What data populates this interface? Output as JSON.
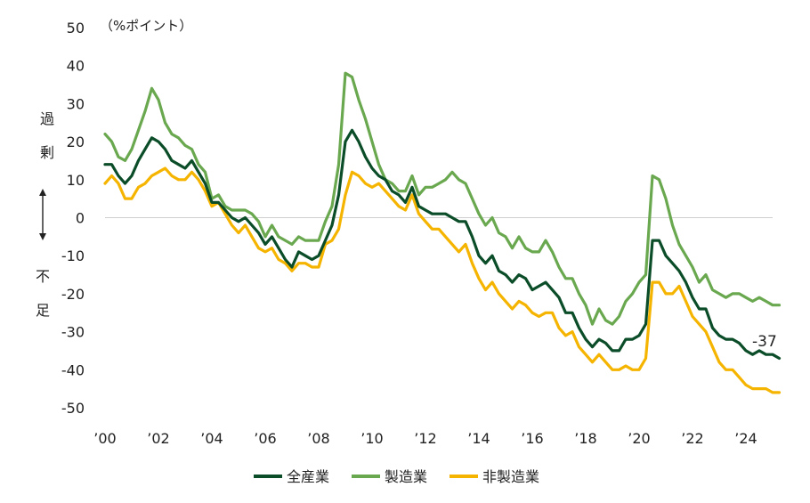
{
  "chart_data": {
    "type": "line",
    "unit_label": "（%ポイント）",
    "ylim": [
      -50,
      50
    ],
    "y_ticks": [
      50,
      40,
      30,
      20,
      10,
      0,
      -10,
      -20,
      -30,
      -40,
      -50
    ],
    "x_range": [
      2000,
      2025
    ],
    "x_tick_positions": [
      2000,
      2002,
      2004,
      2006,
      2008,
      2010,
      2012,
      2014,
      2016,
      2018,
      2020,
      2022,
      2024
    ],
    "x_tick_labels": [
      "’00",
      "’02",
      "’04",
      "’06",
      "’08",
      "’10",
      "’12",
      "’14",
      "’16",
      "’18",
      "’20",
      "’22",
      "’24"
    ],
    "side_top": [
      "過",
      "剰"
    ],
    "side_bottom": [
      "不",
      "足"
    ],
    "end_label": "-37",
    "legend_position": "bottom",
    "series": [
      {
        "name": "全産業",
        "color": "#0b4d28",
        "points": [
          [
            2000.0,
            14
          ],
          [
            2000.25,
            14
          ],
          [
            2000.5,
            11
          ],
          [
            2000.75,
            9
          ],
          [
            2001.0,
            11
          ],
          [
            2001.25,
            15
          ],
          [
            2001.5,
            18
          ],
          [
            2001.75,
            21
          ],
          [
            2002.0,
            20
          ],
          [
            2002.25,
            18
          ],
          [
            2002.5,
            15
          ],
          [
            2002.75,
            14
          ],
          [
            2003.0,
            13
          ],
          [
            2003.25,
            15
          ],
          [
            2003.5,
            12
          ],
          [
            2003.75,
            9
          ],
          [
            2004.0,
            4
          ],
          [
            2004.25,
            4
          ],
          [
            2004.5,
            2
          ],
          [
            2004.75,
            0
          ],
          [
            2005.0,
            -1
          ],
          [
            2005.25,
            0
          ],
          [
            2005.5,
            -2
          ],
          [
            2005.75,
            -4
          ],
          [
            2006.0,
            -7
          ],
          [
            2006.25,
            -5
          ],
          [
            2006.5,
            -8
          ],
          [
            2006.75,
            -11
          ],
          [
            2007.0,
            -13
          ],
          [
            2007.25,
            -9
          ],
          [
            2007.5,
            -10
          ],
          [
            2007.75,
            -11
          ],
          [
            2008.0,
            -10
          ],
          [
            2008.25,
            -6
          ],
          [
            2008.5,
            -2
          ],
          [
            2008.75,
            6
          ],
          [
            2009.0,
            20
          ],
          [
            2009.25,
            23
          ],
          [
            2009.5,
            20
          ],
          [
            2009.75,
            16
          ],
          [
            2010.0,
            13
          ],
          [
            2010.25,
            11
          ],
          [
            2010.5,
            10
          ],
          [
            2010.75,
            7
          ],
          [
            2011.0,
            6
          ],
          [
            2011.25,
            4
          ],
          [
            2011.5,
            8
          ],
          [
            2011.75,
            3
          ],
          [
            2012.0,
            2
          ],
          [
            2012.25,
            1
          ],
          [
            2012.5,
            1
          ],
          [
            2012.75,
            1
          ],
          [
            2013.0,
            0
          ],
          [
            2013.25,
            -1
          ],
          [
            2013.5,
            -1
          ],
          [
            2013.75,
            -5
          ],
          [
            2014.0,
            -10
          ],
          [
            2014.25,
            -12
          ],
          [
            2014.5,
            -10
          ],
          [
            2014.75,
            -14
          ],
          [
            2015.0,
            -15
          ],
          [
            2015.25,
            -17
          ],
          [
            2015.5,
            -15
          ],
          [
            2015.75,
            -16
          ],
          [
            2016.0,
            -19
          ],
          [
            2016.25,
            -18
          ],
          [
            2016.5,
            -17
          ],
          [
            2016.75,
            -19
          ],
          [
            2017.0,
            -21
          ],
          [
            2017.25,
            -25
          ],
          [
            2017.5,
            -25
          ],
          [
            2017.75,
            -29
          ],
          [
            2018.0,
            -32
          ],
          [
            2018.25,
            -34
          ],
          [
            2018.5,
            -32
          ],
          [
            2018.75,
            -33
          ],
          [
            2019.0,
            -35
          ],
          [
            2019.25,
            -35
          ],
          [
            2019.5,
            -32
          ],
          [
            2019.75,
            -32
          ],
          [
            2020.0,
            -31
          ],
          [
            2020.25,
            -28
          ],
          [
            2020.5,
            -6
          ],
          [
            2020.75,
            -6
          ],
          [
            2021.0,
            -10
          ],
          [
            2021.25,
            -12
          ],
          [
            2021.5,
            -14
          ],
          [
            2021.75,
            -17
          ],
          [
            2022.0,
            -21
          ],
          [
            2022.25,
            -24
          ],
          [
            2022.5,
            -24
          ],
          [
            2022.75,
            -29
          ],
          [
            2023.0,
            -31
          ],
          [
            2023.25,
            -32
          ],
          [
            2023.5,
            -32
          ],
          [
            2023.75,
            -33
          ],
          [
            2024.0,
            -35
          ],
          [
            2024.25,
            -36
          ],
          [
            2024.5,
            -35
          ],
          [
            2024.75,
            -36
          ],
          [
            2025.0,
            -36
          ],
          [
            2025.25,
            -37
          ]
        ]
      },
      {
        "name": "製造業",
        "color": "#6aa84f",
        "points": [
          [
            2000.0,
            22
          ],
          [
            2000.25,
            20
          ],
          [
            2000.5,
            16
          ],
          [
            2000.75,
            15
          ],
          [
            2001.0,
            18
          ],
          [
            2001.25,
            23
          ],
          [
            2001.5,
            28
          ],
          [
            2001.75,
            34
          ],
          [
            2002.0,
            31
          ],
          [
            2002.25,
            25
          ],
          [
            2002.5,
            22
          ],
          [
            2002.75,
            21
          ],
          [
            2003.0,
            19
          ],
          [
            2003.25,
            18
          ],
          [
            2003.5,
            14
          ],
          [
            2003.75,
            12
          ],
          [
            2004.0,
            5
          ],
          [
            2004.25,
            6
          ],
          [
            2004.5,
            3
          ],
          [
            2004.75,
            2
          ],
          [
            2005.0,
            2
          ],
          [
            2005.25,
            2
          ],
          [
            2005.5,
            1
          ],
          [
            2005.75,
            -1
          ],
          [
            2006.0,
            -5
          ],
          [
            2006.25,
            -2
          ],
          [
            2006.5,
            -5
          ],
          [
            2006.75,
            -6
          ],
          [
            2007.0,
            -7
          ],
          [
            2007.25,
            -5
          ],
          [
            2007.5,
            -6
          ],
          [
            2007.75,
            -6
          ],
          [
            2008.0,
            -6
          ],
          [
            2008.25,
            -1
          ],
          [
            2008.5,
            3
          ],
          [
            2008.75,
            14
          ],
          [
            2009.0,
            38
          ],
          [
            2009.25,
            37
          ],
          [
            2009.5,
            31
          ],
          [
            2009.75,
            26
          ],
          [
            2010.0,
            20
          ],
          [
            2010.25,
            14
          ],
          [
            2010.5,
            10
          ],
          [
            2010.75,
            9
          ],
          [
            2011.0,
            7
          ],
          [
            2011.25,
            7
          ],
          [
            2011.5,
            11
          ],
          [
            2011.75,
            6
          ],
          [
            2012.0,
            8
          ],
          [
            2012.25,
            8
          ],
          [
            2012.5,
            9
          ],
          [
            2012.75,
            10
          ],
          [
            2013.0,
            12
          ],
          [
            2013.25,
            10
          ],
          [
            2013.5,
            9
          ],
          [
            2013.75,
            5
          ],
          [
            2014.0,
            1
          ],
          [
            2014.25,
            -2
          ],
          [
            2014.5,
            0
          ],
          [
            2014.75,
            -4
          ],
          [
            2015.0,
            -5
          ],
          [
            2015.25,
            -8
          ],
          [
            2015.5,
            -5
          ],
          [
            2015.75,
            -8
          ],
          [
            2016.0,
            -9
          ],
          [
            2016.25,
            -9
          ],
          [
            2016.5,
            -6
          ],
          [
            2016.75,
            -9
          ],
          [
            2017.0,
            -13
          ],
          [
            2017.25,
            -16
          ],
          [
            2017.5,
            -16
          ],
          [
            2017.75,
            -20
          ],
          [
            2018.0,
            -23
          ],
          [
            2018.25,
            -28
          ],
          [
            2018.5,
            -24
          ],
          [
            2018.75,
            -27
          ],
          [
            2019.0,
            -28
          ],
          [
            2019.25,
            -26
          ],
          [
            2019.5,
            -22
          ],
          [
            2019.75,
            -20
          ],
          [
            2020.0,
            -17
          ],
          [
            2020.25,
            -15
          ],
          [
            2020.5,
            11
          ],
          [
            2020.75,
            10
          ],
          [
            2021.0,
            5
          ],
          [
            2021.25,
            -2
          ],
          [
            2021.5,
            -7
          ],
          [
            2021.75,
            -10
          ],
          [
            2022.0,
            -13
          ],
          [
            2022.25,
            -17
          ],
          [
            2022.5,
            -15
          ],
          [
            2022.75,
            -19
          ],
          [
            2023.0,
            -20
          ],
          [
            2023.25,
            -21
          ],
          [
            2023.5,
            -20
          ],
          [
            2023.75,
            -20
          ],
          [
            2024.0,
            -21
          ],
          [
            2024.25,
            -22
          ],
          [
            2024.5,
            -21
          ],
          [
            2024.75,
            -22
          ],
          [
            2025.0,
            -23
          ],
          [
            2025.25,
            -23
          ]
        ]
      },
      {
        "name": "非製造業",
        "color": "#f5b400",
        "points": [
          [
            2000.0,
            9
          ],
          [
            2000.25,
            11
          ],
          [
            2000.5,
            9
          ],
          [
            2000.75,
            5
          ],
          [
            2001.0,
            5
          ],
          [
            2001.25,
            8
          ],
          [
            2001.5,
            9
          ],
          [
            2001.75,
            11
          ],
          [
            2002.0,
            12
          ],
          [
            2002.25,
            13
          ],
          [
            2002.5,
            11
          ],
          [
            2002.75,
            10
          ],
          [
            2003.0,
            10
          ],
          [
            2003.25,
            12
          ],
          [
            2003.5,
            10
          ],
          [
            2003.75,
            7
          ],
          [
            2004.0,
            3
          ],
          [
            2004.25,
            4
          ],
          [
            2004.5,
            1
          ],
          [
            2004.75,
            -2
          ],
          [
            2005.0,
            -4
          ],
          [
            2005.25,
            -2
          ],
          [
            2005.5,
            -5
          ],
          [
            2005.75,
            -8
          ],
          [
            2006.0,
            -9
          ],
          [
            2006.25,
            -8
          ],
          [
            2006.5,
            -11
          ],
          [
            2006.75,
            -12
          ],
          [
            2007.0,
            -14
          ],
          [
            2007.25,
            -12
          ],
          [
            2007.5,
            -12
          ],
          [
            2007.75,
            -13
          ],
          [
            2008.0,
            -13
          ],
          [
            2008.25,
            -7
          ],
          [
            2008.5,
            -6
          ],
          [
            2008.75,
            -3
          ],
          [
            2009.0,
            6
          ],
          [
            2009.25,
            12
          ],
          [
            2009.5,
            11
          ],
          [
            2009.75,
            9
          ],
          [
            2010.0,
            8
          ],
          [
            2010.25,
            9
          ],
          [
            2010.5,
            7
          ],
          [
            2010.75,
            5
          ],
          [
            2011.0,
            3
          ],
          [
            2011.25,
            2
          ],
          [
            2011.5,
            6
          ],
          [
            2011.75,
            1
          ],
          [
            2012.0,
            -1
          ],
          [
            2012.25,
            -3
          ],
          [
            2012.5,
            -3
          ],
          [
            2012.75,
            -5
          ],
          [
            2013.0,
            -7
          ],
          [
            2013.25,
            -9
          ],
          [
            2013.5,
            -7
          ],
          [
            2013.75,
            -12
          ],
          [
            2014.0,
            -16
          ],
          [
            2014.25,
            -19
          ],
          [
            2014.5,
            -17
          ],
          [
            2014.75,
            -20
          ],
          [
            2015.0,
            -22
          ],
          [
            2015.25,
            -24
          ],
          [
            2015.5,
            -22
          ],
          [
            2015.75,
            -23
          ],
          [
            2016.0,
            -25
          ],
          [
            2016.25,
            -26
          ],
          [
            2016.5,
            -25
          ],
          [
            2016.75,
            -25
          ],
          [
            2017.0,
            -29
          ],
          [
            2017.25,
            -31
          ],
          [
            2017.5,
            -30
          ],
          [
            2017.75,
            -34
          ],
          [
            2018.0,
            -36
          ],
          [
            2018.25,
            -38
          ],
          [
            2018.5,
            -36
          ],
          [
            2018.75,
            -38
          ],
          [
            2019.0,
            -40
          ],
          [
            2019.25,
            -40
          ],
          [
            2019.5,
            -39
          ],
          [
            2019.75,
            -40
          ],
          [
            2020.0,
            -40
          ],
          [
            2020.25,
            -37
          ],
          [
            2020.5,
            -17
          ],
          [
            2020.75,
            -17
          ],
          [
            2021.0,
            -20
          ],
          [
            2021.25,
            -20
          ],
          [
            2021.5,
            -18
          ],
          [
            2021.75,
            -22
          ],
          [
            2022.0,
            -26
          ],
          [
            2022.25,
            -28
          ],
          [
            2022.5,
            -30
          ],
          [
            2022.75,
            -34
          ],
          [
            2023.0,
            -38
          ],
          [
            2023.25,
            -40
          ],
          [
            2023.5,
            -40
          ],
          [
            2023.75,
            -42
          ],
          [
            2024.0,
            -44
          ],
          [
            2024.25,
            -45
          ],
          [
            2024.5,
            -45
          ],
          [
            2024.75,
            -45
          ],
          [
            2025.0,
            -46
          ],
          [
            2025.25,
            -46
          ]
        ]
      }
    ]
  }
}
